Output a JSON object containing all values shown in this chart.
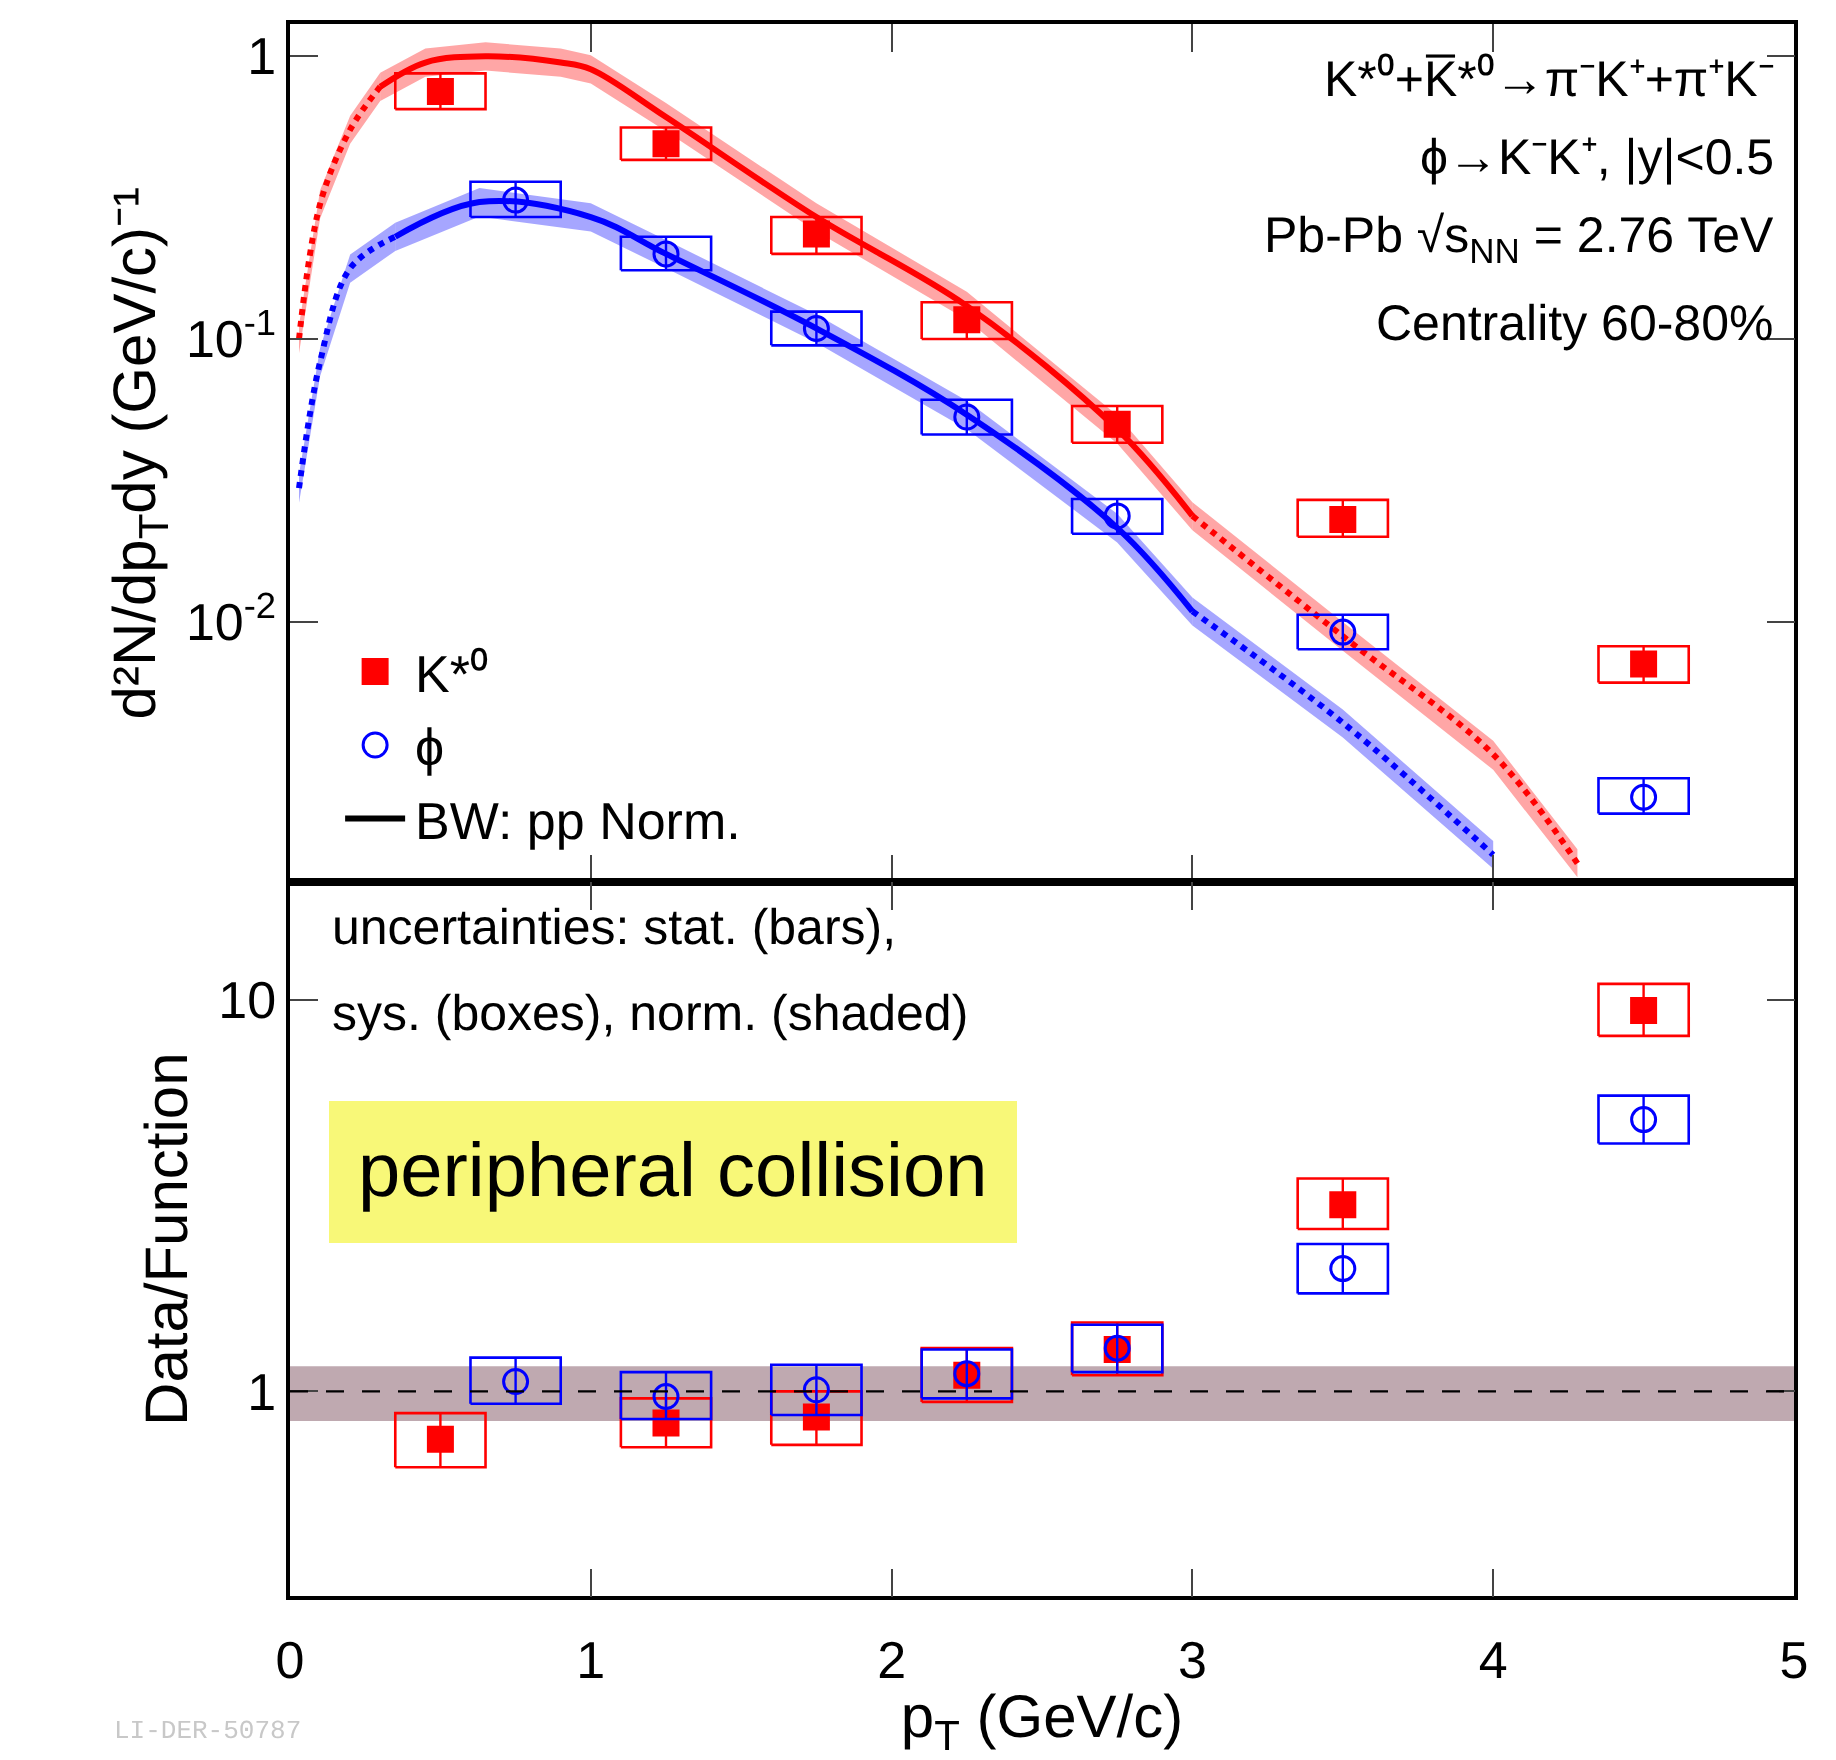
{
  "chart_data": [
    {
      "type": "scatter",
      "xlim": [
        0,
        5
      ],
      "xticks": [
        {
          "value": 0,
          "label": null
        },
        {
          "value": 1,
          "label": null
        },
        {
          "value": 2,
          "label": null
        },
        {
          "value": 3,
          "label": null
        },
        {
          "value": 4,
          "label": null
        },
        {
          "value": 5,
          "label": null
        }
      ],
      "tick_labels": "y",
      "log": true,
      "ylim": [
        0.0012,
        1.3
      ],
      "yticks": [
        {
          "value": 0.01,
          "label": "10$^{-2}$"
        },
        {
          "value": 0.1,
          "label": "10$^{-1}$"
        },
        {
          "value": 1,
          "label": "1"
        }
      ],
      "ylabel": "d²N/dp$_{T}$dy (GeV/c)⁻¹",
      "legend": "bottom left",
      "grid": false,
      "annotations": [
        "K*⁰+K̅*⁰→π⁻K⁺+π⁺K⁻",
        "ϕ→K⁻K⁺, |y|<0.5",
        "Pb-Pb √s$_{NN}$ = 2.76 TeV",
        "Centrality 60-80%"
      ],
      "series": [
        {
          "type": "line",
          "color": "#ff0000",
          "line_style": "dotted",
          "x": [
            0.03,
            0.1,
            0.2,
            0.3
          ],
          "values": [
            0.1,
            0.3,
            0.55,
            0.78
          ],
          "lower": [
            0.089,
            0.267,
            0.49,
            0.694
          ],
          "upper": [
            0.112,
            0.336,
            0.616,
            0.874
          ]
        },
        {
          "type": "line",
          "color": "#ff0000",
          "line_style": "solid",
          "x": [
            0.3,
            0.45,
            0.65,
            0.9,
            1.0,
            1.25,
            1.75,
            2.25,
            2.75,
            3.0
          ],
          "values": [
            0.78,
            0.95,
            1.0,
            0.95,
            0.9,
            0.61,
            0.27,
            0.131,
            0.048,
            0.0237
          ],
          "lower": [
            0.694,
            0.846,
            0.89,
            0.846,
            0.801,
            0.543,
            0.24,
            0.117,
            0.0427,
            0.0211
          ],
          "upper": [
            0.874,
            1.064,
            1.12,
            1.064,
            1.008,
            0.683,
            0.302,
            0.147,
            0.0538,
            0.0265
          ]
        },
        {
          "type": "line",
          "color": "#ff0000",
          "line_style": "dotted",
          "x": [
            3.0,
            3.5,
            4.0,
            4.28
          ],
          "values": [
            0.0237,
            0.0089,
            0.0034,
            0.0014
          ],
          "lower": [
            0.0211,
            0.0079,
            0.003,
            0.00125
          ],
          "upper": [
            0.0265,
            0.01,
            0.0038,
            0.00157
          ]
        },
        {
          "type": "line",
          "color": "#0000ff",
          "line_style": "dotted",
          "x": [
            0.03,
            0.1,
            0.2,
            0.35
          ],
          "values": [
            0.0297,
            0.083,
            0.178,
            0.23
          ],
          "lower": [
            0.0264,
            0.0739,
            0.158,
            0.205
          ],
          "upper": [
            0.0333,
            0.093,
            0.199,
            0.258
          ]
        },
        {
          "type": "line",
          "color": "#0000ff",
          "line_style": "solid",
          "x": [
            0.35,
            0.63,
            1.0,
            1.25,
            1.75,
            2.25,
            2.75,
            3.0
          ],
          "values": [
            0.23,
            0.305,
            0.27,
            0.2,
            0.109,
            0.054,
            0.0215,
            0.0109
          ],
          "lower": [
            0.205,
            0.271,
            0.24,
            0.178,
            0.097,
            0.048,
            0.0191,
            0.0097
          ],
          "upper": [
            0.258,
            0.342,
            0.302,
            0.224,
            0.122,
            0.0605,
            0.0241,
            0.0122
          ]
        },
        {
          "type": "line",
          "color": "#0000ff",
          "line_style": "dotted",
          "x": [
            3.0,
            3.5,
            4.0
          ],
          "values": [
            0.0109,
            0.0044,
            0.0015
          ],
          "lower": [
            0.0097,
            0.0039,
            0.00134
          ],
          "upper": [
            0.0122,
            0.0049,
            0.00168
          ]
        },
        {
          "name": "K*⁰",
          "color": "#ff0000",
          "marker": "square",
          "x": [
            0.5,
            1.25,
            1.75,
            2.25,
            2.75,
            3.5,
            4.5
          ],
          "values": [
            0.75,
            0.49,
            0.235,
            0.117,
            0.05,
            0.023,
            0.0071
          ],
          "errors": [
            [
              0.65,
              0.87
            ],
            [
              0.43,
              0.56
            ],
            [
              0.2,
              0.27
            ],
            [
              0.1,
              0.135
            ],
            [
              0.043,
              0.058
            ],
            [
              0.02,
              0.027
            ],
            [
              0.0061,
              0.0082
            ]
          ]
        },
        {
          "name": "ϕ",
          "color": "#0000ff",
          "marker": "circle",
          "x": [
            0.75,
            1.25,
            1.75,
            2.25,
            2.75,
            3.5,
            4.5
          ],
          "values": [
            0.31,
            0.2,
            0.109,
            0.053,
            0.0237,
            0.0092,
            0.0024
          ],
          "errors": [
            [
              0.27,
              0.36
            ],
            [
              0.175,
              0.23
            ],
            [
              0.095,
              0.125
            ],
            [
              0.046,
              0.061
            ],
            [
              0.0205,
              0.0272
            ],
            [
              0.008,
              0.0106
            ],
            [
              0.0021,
              0.0028
            ]
          ]
        },
        {
          "type": "line",
          "name": "BW: pp Norm.",
          "color": "#000000",
          "line_style": "solid",
          "x": [
            null
          ],
          "values": [
            null
          ]
        }
      ]
    },
    {
      "type": "scatter",
      "xlim": [
        0,
        5
      ],
      "xticks": [
        0,
        1,
        2,
        3,
        4,
        5
      ],
      "xlabel": "p$_{T}$ (GeV/c)",
      "log": true,
      "ylim": [
        0.3,
        20
      ],
      "yticks": [
        1,
        10
      ],
      "ylabel": "Data/Function",
      "grid": false,
      "annotations": [
        "uncertainties: stat. (bars),",
        "sys. (boxes), norm. (shaded)",
        "peripheral collision",
        "LI-DER-50787"
      ],
      "bands": [
        {
          "axis": "y",
          "from": 0.84,
          "to": 1.16,
          "color": "#bfa9b0"
        }
      ],
      "ref_lines": [
        {
          "axis": "y",
          "value": 1,
          "color": "#000000",
          "line_style": "dashed"
        }
      ],
      "series": [
        {
          "color": "#ff0000",
          "marker": "square",
          "x": [
            0.5,
            1.25,
            1.75,
            2.25,
            2.75,
            3.5,
            4.5
          ],
          "values": [
            0.755,
            0.83,
            0.86,
            1.1,
            1.28,
            3.0,
            9.4
          ],
          "errors": [
            [
              0.64,
              0.88
            ],
            [
              0.72,
              0.96
            ],
            [
              0.73,
              1.0
            ],
            [
              0.94,
              1.29
            ],
            [
              1.1,
              1.5
            ],
            [
              2.6,
              3.5
            ],
            [
              8.1,
              11
            ]
          ]
        },
        {
          "color": "#0000ff",
          "marker": "circle",
          "x": [
            0.75,
            1.25,
            1.75,
            2.25,
            2.75,
            3.5,
            4.5
          ],
          "values": [
            1.06,
            0.97,
            1.01,
            1.11,
            1.29,
            2.06,
            4.95
          ],
          "errors": [
            [
              0.93,
              1.22
            ],
            [
              0.85,
              1.12
            ],
            [
              0.87,
              1.17
            ],
            [
              0.96,
              1.28
            ],
            [
              1.12,
              1.48
            ],
            [
              1.78,
              2.38
            ],
            [
              4.3,
              5.7
            ]
          ]
        }
      ]
    }
  ]
}
